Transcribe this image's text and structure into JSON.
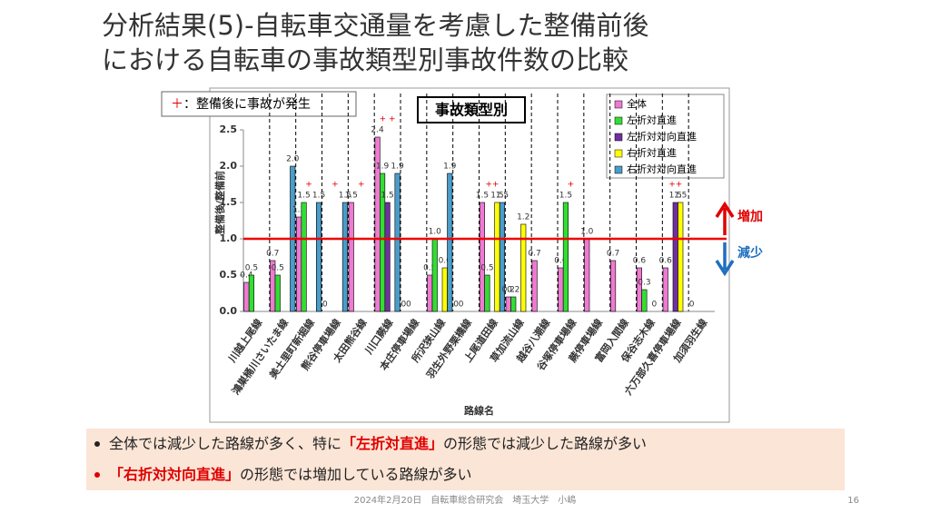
{
  "title": [
    "分析結果(5)-自転車交通量を考慮した整備前後",
    "における自転車の事故類型別事故件数の比較"
  ],
  "plus_note": {
    "symbol": "＋",
    "text": "：整備後に事故が発生"
  },
  "chart_data": {
    "type": "bar",
    "label_box": "事故類型別",
    "y_label": "整備後/整備前",
    "x_label": "路線名",
    "categories": [
      "川越上尾線",
      "鴻巣桶川さいたま線",
      "美土里町新堀線",
      "熊谷停車場線",
      "太田熊谷線",
      "川口蕨線",
      "本庄停車場線",
      "所沢狭山線",
      "羽生外野栗橋線",
      "上尾道田線",
      "草加流山線",
      "越谷八潮線",
      "谷塚停車場線",
      "蕨停車場線",
      "富岡入間線",
      "保谷志木線",
      "六万部久喜停車場線",
      "加須羽生線"
    ],
    "series": [
      {
        "name": "全体",
        "color": "#ee7ad2",
        "values": [
          0.4,
          0.7,
          1.3,
          0,
          1.5,
          2.4,
          0,
          0.5,
          0,
          1.5,
          0.2,
          0.7,
          0.6,
          1,
          0.7,
          0.6,
          0.6,
          0
        ],
        "value_labels": [
          "0.4",
          "0.7",
          "1.3",
          "0",
          "1.5",
          "2.4",
          "0",
          "0.5",
          "0",
          "1.5",
          "0.2",
          "0.7",
          "0.6",
          "1.0",
          "0.7",
          "0.6",
          "0.6",
          "0"
        ]
      },
      {
        "name": "左折対直進",
        "color": "#33dd33",
        "values": [
          0.5,
          0.5,
          1.5,
          null,
          null,
          1.9,
          0,
          1,
          0,
          0.5,
          0.2,
          null,
          1.5,
          null,
          null,
          0.3,
          null,
          null
        ],
        "value_labels": [
          "0.5",
          "0.5",
          "1.5",
          null,
          null,
          "1.9",
          "0",
          "1.0",
          "0",
          "0.5",
          "0.2",
          null,
          "1.5",
          null,
          null,
          "0.3",
          null,
          null
        ]
      },
      {
        "name": "左折対対向直進",
        "color": "#7030a0",
        "values": [
          null,
          null,
          null,
          null,
          null,
          1.5,
          null,
          null,
          null,
          null,
          null,
          null,
          null,
          null,
          null,
          null,
          1.5,
          null
        ],
        "value_labels": [
          null,
          null,
          null,
          null,
          null,
          "1.5",
          null,
          null,
          null,
          null,
          null,
          null,
          null,
          null,
          null,
          null,
          "1.5",
          null
        ]
      },
      {
        "name": "右折対直進",
        "color": "#ffff00",
        "values": [
          null,
          null,
          null,
          null,
          null,
          null,
          null,
          0.6,
          null,
          1.5,
          1.2,
          null,
          null,
          null,
          null,
          0,
          1.5,
          null
        ],
        "value_labels": [
          null,
          null,
          null,
          null,
          null,
          null,
          null,
          "0.6",
          null,
          "1.5",
          "1.2",
          null,
          null,
          null,
          null,
          "0",
          "1.5",
          null
        ]
      },
      {
        "name": "右折対対向直進",
        "color": "#4b9cc8",
        "values": [
          null,
          2,
          1.5,
          1.5,
          null,
          1.9,
          null,
          1.9,
          null,
          1.5,
          null,
          null,
          null,
          null,
          null,
          null,
          null,
          null
        ],
        "value_labels": [
          null,
          "2.0",
          "1.5",
          "1.5",
          null,
          "1.9",
          null,
          "1.9",
          null,
          "1.5",
          null,
          null,
          null,
          null,
          null,
          null,
          null,
          null
        ]
      }
    ],
    "ylim": [
      0,
      2.5
    ],
    "yticks": [
      {
        "value": 0,
        "label": "0.0"
      },
      {
        "value": 0.5,
        "label": "0.5"
      },
      {
        "value": 1,
        "label": "1.0"
      },
      {
        "value": 1.5,
        "label": "1.5"
      },
      {
        "value": 2,
        "label": "2.0"
      },
      {
        "value": 2.5,
        "label": "2.5"
      }
    ],
    "reference_line": 1,
    "reference_color": "#ee0000",
    "increase_label": "増加",
    "decrease_label": "減少",
    "annotations": [
      {
        "category": "美土里町新堀線",
        "label": "+"
      },
      {
        "category": "熊谷停車場線",
        "label": "+"
      },
      {
        "category": "太田熊谷線",
        "label": "+"
      },
      {
        "category": "川口蕨線",
        "label": "+ +"
      },
      {
        "category": "上尾道田線",
        "label": "++"
      },
      {
        "category": "谷塚停車場線",
        "label": "+"
      },
      {
        "category": "六万部久喜停車場線",
        "label": "++"
      }
    ]
  },
  "bullets": [
    {
      "parts": [
        "全体では減少した路線が多く、特に",
        "「左折対直進」",
        "の形態では減少した路線が多い"
      ]
    },
    {
      "parts": [
        "「右折対対向直進」",
        "の形態では増加している路線が多い"
      ]
    }
  ],
  "footer": "2024年2月20日　自転車総合研究会　埼玉大学　小嶋",
  "page": "16"
}
